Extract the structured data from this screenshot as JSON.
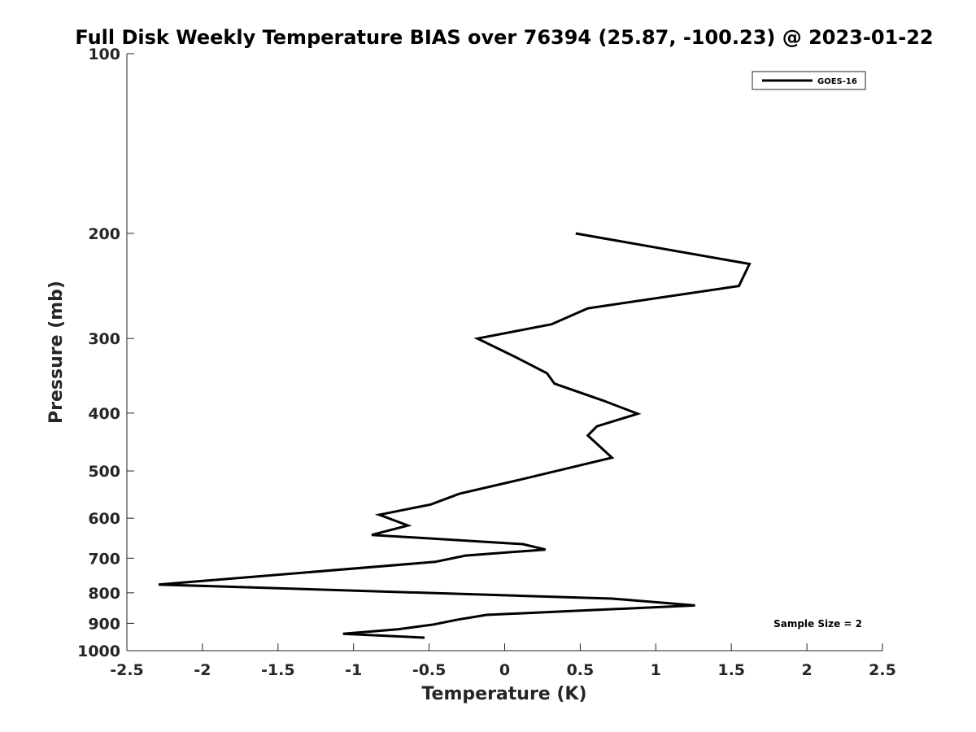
{
  "chart_data": {
    "type": "line",
    "title": "Full Disk Weekly Temperature BIAS over 76394 (25.87, -100.23) @ 2023-01-22",
    "xlabel": "Temperature (K)",
    "ylabel": "Pressure (mb)",
    "xlim": [
      -2.5,
      2.5
    ],
    "ylim": [
      100,
      1000
    ],
    "y_scale": "log",
    "y_reversed": true,
    "x_ticks": [
      "-2.5",
      "-2",
      "-1.5",
      "-1",
      "-0.5",
      "0",
      "0.5",
      "1",
      "1.5",
      "2",
      "2.5"
    ],
    "x_tick_values": [
      -2.5,
      -2,
      -1.5,
      -1,
      -0.5,
      0,
      0.5,
      1,
      1.5,
      2,
      2.5
    ],
    "y_ticks": [
      "100",
      "200",
      "300",
      "400",
      "500",
      "600",
      "700",
      "800",
      "900",
      "1000"
    ],
    "y_tick_values": [
      100,
      200,
      300,
      400,
      500,
      600,
      700,
      800,
      900,
      1000
    ],
    "grid": false,
    "legend_position": "top-right",
    "series": [
      {
        "name": "GOES-16",
        "color": "#000000",
        "points": [
          [
            0.47,
            200
          ],
          [
            1.62,
            225
          ],
          [
            1.55,
            245
          ],
          [
            0.55,
            267
          ],
          [
            0.31,
            284
          ],
          [
            -0.18,
            300
          ],
          [
            0.08,
            323
          ],
          [
            0.28,
            343
          ],
          [
            0.33,
            357
          ],
          [
            0.65,
            381
          ],
          [
            0.88,
            401
          ],
          [
            0.61,
            421
          ],
          [
            0.55,
            436
          ],
          [
            0.71,
            475
          ],
          [
            0.43,
            494
          ],
          [
            0.09,
            518
          ],
          [
            -0.3,
            546
          ],
          [
            -0.49,
            569
          ],
          [
            -0.83,
            592
          ],
          [
            -0.64,
            617
          ],
          [
            -0.88,
            640
          ],
          [
            0.12,
            663
          ],
          [
            0.27,
            677
          ],
          [
            -0.26,
            693
          ],
          [
            -0.46,
            710
          ],
          [
            -2.29,
            775
          ],
          [
            0.71,
            818
          ],
          [
            1.26,
            840
          ],
          [
            0.5,
            857
          ],
          [
            -0.12,
            871
          ],
          [
            -0.31,
            887
          ],
          [
            -0.47,
            904
          ],
          [
            -0.71,
            921
          ],
          [
            -1.07,
            937
          ],
          [
            -0.53,
            951
          ]
        ]
      }
    ],
    "annotation": "Sample Size = 2"
  }
}
